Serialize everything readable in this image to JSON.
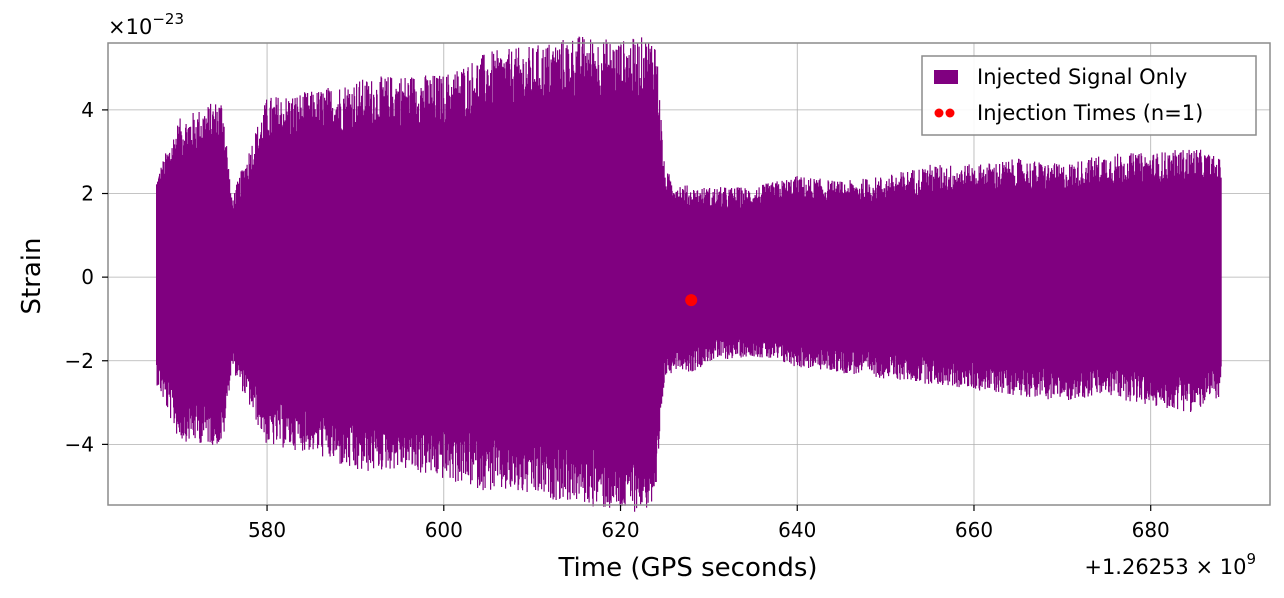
{
  "chart_data": {
    "type": "line",
    "title": "",
    "xlabel": "Time (GPS seconds)",
    "ylabel": "Strain",
    "x_offset_label_base": "+1.26253",
    "x_offset_label_exp": "9",
    "y_scale_label_base": "×10",
    "y_scale_label_exp": "−23",
    "xlim": [
      562,
      693.5
    ],
    "ylim": [
      -5.45,
      5.6
    ],
    "x_ticks": [
      580,
      600,
      620,
      640,
      660,
      680
    ],
    "x_tick_labels": [
      "580",
      "600",
      "620",
      "640",
      "660",
      "680"
    ],
    "y_ticks": [
      -4,
      -2,
      0,
      2,
      4
    ],
    "y_tick_labels": [
      "−4",
      "−2",
      "0",
      "2",
      "4"
    ],
    "grid": true,
    "legend_position": "top-right",
    "series": [
      {
        "name": "Injected Signal Only",
        "color": "#800080",
        "style": "filled-band",
        "x": [
          567.5,
          570,
          575,
          576,
          580,
          585,
          590,
          595,
          600,
          605,
          610,
          615,
          620,
          624,
          625,
          626.5,
          628,
          630,
          635,
          640,
          645,
          650,
          655,
          660,
          665,
          670,
          675,
          680,
          685,
          688
        ],
        "upper": [
          1.8,
          2.8,
          3.2,
          1.4,
          3.2,
          3.3,
          3.5,
          3.6,
          3.6,
          4.0,
          4.1,
          4.3,
          4.2,
          4.3,
          1.9,
          1.7,
          1.6,
          1.6,
          1.6,
          1.8,
          1.7,
          1.8,
          2.0,
          2.0,
          2.1,
          2.0,
          2.2,
          2.2,
          2.3,
          2.1
        ],
        "lower": [
          -1.9,
          -2.9,
          -3.0,
          -1.6,
          -3.0,
          -3.1,
          -3.5,
          -3.4,
          -3.6,
          -3.8,
          -3.9,
          -4.0,
          -4.2,
          -4.1,
          -1.8,
          -1.6,
          -1.7,
          -1.5,
          -1.4,
          -1.6,
          -1.7,
          -1.8,
          -1.9,
          -2.0,
          -2.1,
          -2.2,
          -2.1,
          -2.3,
          -2.4,
          -2.1
        ],
        "peaks_max": [
          4.7,
          4.8,
          5.0,
          5.1,
          5.0
        ],
        "peaks_min": [
          -4.5,
          -4.6,
          -4.7,
          -4.9,
          -4.9
        ]
      },
      {
        "name": "Injection Times (n=1)",
        "color": "#ff0000",
        "style": "scatter",
        "points": [
          {
            "x": 628,
            "y": -0.55
          }
        ]
      }
    ]
  }
}
